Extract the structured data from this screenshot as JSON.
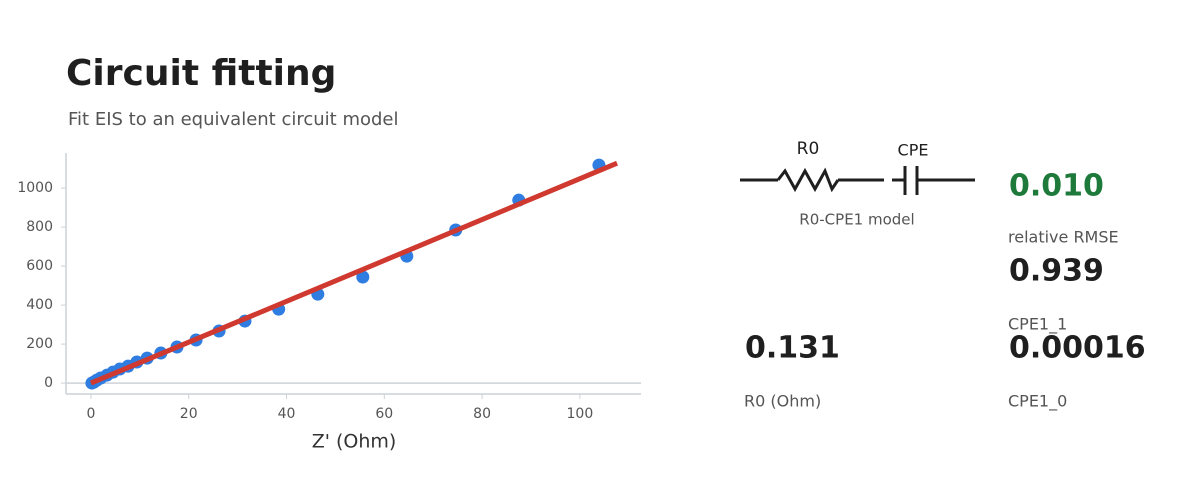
{
  "header": {
    "title": "Circuit fitting",
    "subtitle": "Fit EIS to an equivalent circuit model"
  },
  "chart_data": {
    "type": "scatter",
    "x_label": "Z' (Ohm)",
    "series": [
      {
        "type": "scatter",
        "color": "#2f7de1",
        "x": [
          0.2,
          0.6,
          1.2,
          2.0,
          3.3,
          4.5,
          5.9,
          7.6,
          9.4,
          11.5,
          14.3,
          17.6,
          21.5,
          26.2,
          31.5,
          38.4,
          46.4,
          55.6,
          64.6,
          74.6,
          87.5,
          103.9
        ],
        "values": [
          0,
          5,
          15,
          26,
          41,
          56,
          72,
          87,
          108,
          128,
          154,
          185,
          221,
          267,
          318,
          379,
          456,
          544,
          651,
          785,
          938,
          1118
        ]
      },
      {
        "type": "line",
        "color": "#d0392f",
        "x": [
          0,
          107.6
        ],
        "values": [
          0,
          1128
        ]
      }
    ],
    "xlim": [
      -5.1,
      112.5
    ],
    "ylim": [
      -56,
      1180
    ],
    "xticks": [
      0,
      20,
      40,
      60,
      80,
      100
    ],
    "yticks": [
      0,
      200,
      400,
      600,
      800,
      1000
    ]
  },
  "circuit": {
    "labels": [
      "R0",
      "CPE"
    ],
    "caption": "R0-CPE1 model"
  },
  "metrics": [
    {
      "value": "0.010",
      "label": "relative RMSE"
    },
    {
      "value": "0.939",
      "label": "CPE1_1"
    },
    {
      "value": "0.131",
      "label": "R0 (Ohm)"
    },
    {
      "value": "0.00016",
      "label": "CPE1_0"
    }
  ]
}
